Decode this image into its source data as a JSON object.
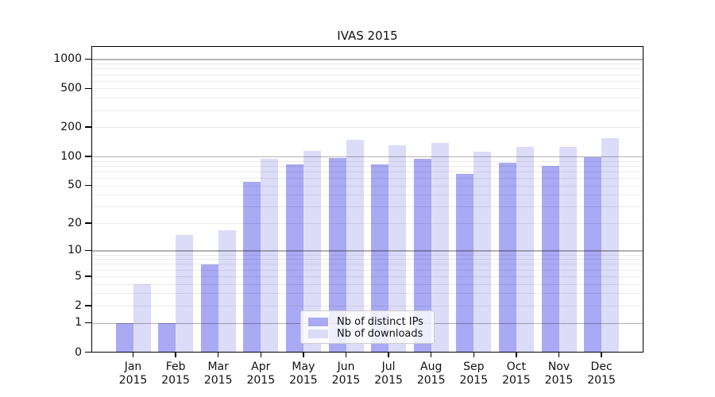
{
  "title": "IVAS 2015",
  "colors": {
    "distinct_ips": "#a9a9f4",
    "downloads": "#dcdcf9",
    "grid_major": "rgba(0,0,0,0.30)",
    "grid_minor": "rgba(0,0,0,0.08)",
    "axis_frame": "#000000",
    "background": "#ffffff",
    "text": "#111111"
  },
  "legend": {
    "items": [
      {
        "label": "Nb of distinct IPs",
        "series_key": "distinct_ips"
      },
      {
        "label": "Nb of downloads",
        "series_key": "downloads"
      }
    ]
  },
  "chart_data": {
    "type": "bar",
    "title": "IVAS 2015",
    "categories": [
      "Jan 2015",
      "Feb 2015",
      "Mar 2015",
      "Apr 2015",
      "May 2015",
      "Jun 2015",
      "Jul 2015",
      "Aug 2015",
      "Sep 2015",
      "Oct 2015",
      "Nov 2015",
      "Dec 2015"
    ],
    "series": [
      {
        "name": "Nb of distinct IPs",
        "color_key": "distinct_ips",
        "values": [
          1,
          1,
          7,
          55,
          83,
          97,
          83,
          95,
          67,
          86,
          81,
          100
        ]
      },
      {
        "name": "Nb of downloads",
        "color_key": "downloads",
        "values": [
          4,
          15,
          17,
          95,
          116,
          150,
          132,
          140,
          113,
          126,
          127,
          155
        ]
      }
    ],
    "y_axis": {
      "scale": "log1p",
      "tick_values": [
        0,
        1,
        2,
        5,
        10,
        20,
        50,
        100,
        200,
        500,
        1000
      ],
      "range": [
        0,
        1360
      ]
    },
    "grid": {
      "major_at": [
        1,
        10,
        100,
        1000
      ],
      "minor_at": [
        2,
        3,
        4,
        5,
        6,
        7,
        8,
        9,
        20,
        30,
        40,
        50,
        60,
        70,
        80,
        90,
        200,
        300,
        400,
        500,
        600,
        700,
        800,
        900
      ]
    },
    "legend_position": "lower-center"
  }
}
